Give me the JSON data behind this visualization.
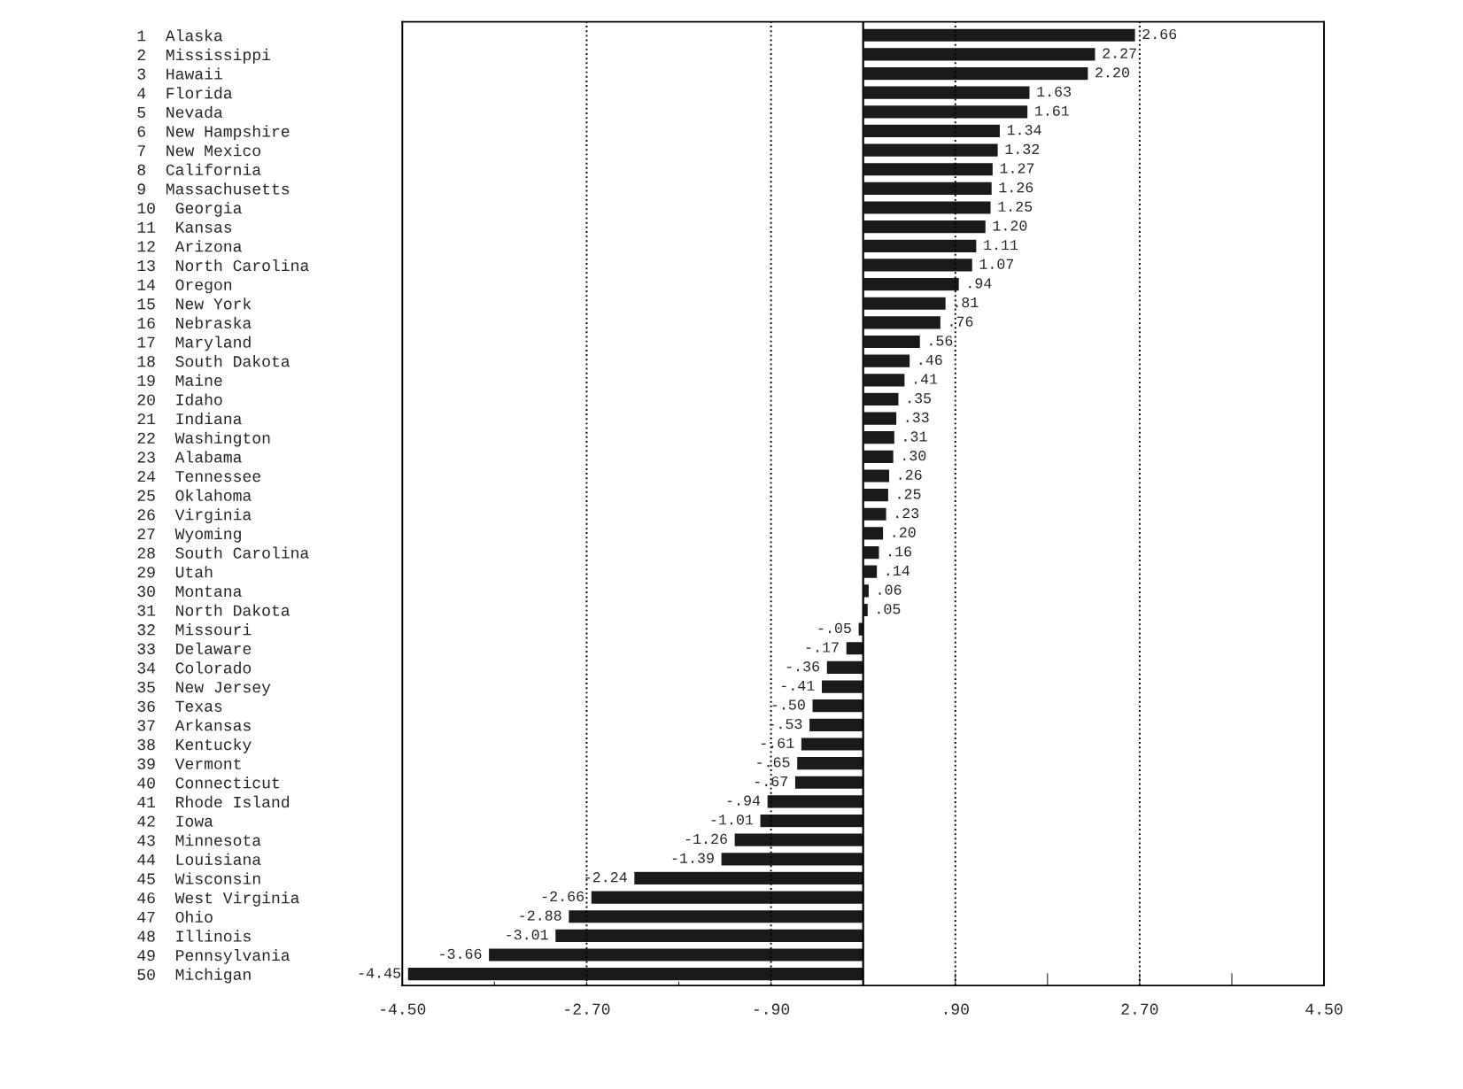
{
  "chart_data": {
    "type": "bar",
    "orientation": "horizontal",
    "categories": [
      "1  Alaska",
      "2  Mississippi",
      "3  Hawaii",
      "4  Florida",
      "5  Nevada",
      "6  New Hampshire",
      "7  New Mexico",
      "8  California",
      "9  Massachusetts",
      "10  Georgia",
      "11  Kansas",
      "12  Arizona",
      "13  North Carolina",
      "14  Oregon",
      "15  New York",
      "16  Nebraska",
      "17  Maryland",
      "18  South Dakota",
      "19  Maine",
      "20  Idaho",
      "21  Indiana",
      "22  Washington",
      "23  Alabama",
      "24  Tennessee",
      "25  Oklahoma",
      "26  Virginia",
      "27  Wyoming",
      "28  South Carolina",
      "29  Utah",
      "30  Montana",
      "31  North Dakota",
      "32  Missouri",
      "33  Delaware",
      "34  Colorado",
      "35  New Jersey",
      "36  Texas",
      "37  Arkansas",
      "38  Kentucky",
      "39  Vermont",
      "40  Connecticut",
      "41  Rhode Island",
      "42  Iowa",
      "43  Minnesota",
      "44  Louisiana",
      "45  Wisconsin",
      "46  West Virginia",
      "47  Ohio",
      "48  Illinois",
      "49  Pennsylvania",
      "50  Michigan"
    ],
    "values": [
      2.66,
      2.27,
      2.2,
      1.63,
      1.61,
      1.34,
      1.32,
      1.27,
      1.26,
      1.25,
      1.2,
      1.11,
      1.07,
      0.94,
      0.81,
      0.76,
      0.56,
      0.46,
      0.41,
      0.35,
      0.33,
      0.31,
      0.3,
      0.26,
      0.25,
      0.23,
      0.2,
      0.16,
      0.14,
      0.06,
      0.05,
      -0.05,
      -0.17,
      -0.36,
      -0.41,
      -0.5,
      -0.53,
      -0.61,
      -0.65,
      -0.67,
      -0.94,
      -1.01,
      -1.26,
      -1.39,
      -2.24,
      -2.66,
      -2.88,
      -3.01,
      -3.66,
      -4.45
    ],
    "value_labels": [
      "2.66",
      "2.27",
      "2.20",
      "1.63",
      "1.61",
      "1.34",
      "1.32",
      "1.27",
      "1.26",
      "1.25",
      "1.20",
      "1.11",
      "1.07",
      ".94",
      ".81",
      ".76",
      ".56",
      ".46",
      ".41",
      ".35",
      ".33",
      ".31",
      ".30",
      ".26",
      ".25",
      ".23",
      ".20",
      ".16",
      ".14",
      ".06",
      ".05",
      "-.05",
      "-.17",
      "-.36",
      "-.41",
      "-.50",
      "-.53",
      "-.61",
      "-.65",
      "-.67",
      "-.94",
      "-1.01",
      "-1.26",
      "-1.39",
      "-2.24",
      "-2.66",
      "-2.88",
      "-3.01",
      "-3.66",
      "-4.45"
    ],
    "color": "#1a1a1a",
    "xlim": [
      -4.5,
      4.5
    ],
    "xticks": [
      {
        "value": -4.5,
        "label": "-4.50"
      },
      {
        "value": -3.6,
        "label": null
      },
      {
        "value": -2.7,
        "label": "-2.70"
      },
      {
        "value": -1.8,
        "label": null
      },
      {
        "value": -0.9,
        "label": "-.90"
      },
      {
        "value": 0,
        "label": null
      },
      {
        "value": 0.9,
        "label": ".90"
      },
      {
        "value": 1.8,
        "label": null
      },
      {
        "value": 2.7,
        "label": "2.70"
      },
      {
        "value": 3.6,
        "label": null
      },
      {
        "value": 4.5,
        "label": "4.50"
      }
    ],
    "ref_lines": [
      {
        "axis": "x",
        "value": -2.7,
        "line_style": "dotted"
      },
      {
        "axis": "x",
        "value": -0.9,
        "line_style": "dotted"
      },
      {
        "axis": "x",
        "value": 0,
        "line_style": "solid"
      },
      {
        "axis": "x",
        "value": 0.9,
        "line_style": "dotted"
      },
      {
        "axis": "x",
        "value": 2.7,
        "line_style": "dotted"
      }
    ]
  }
}
